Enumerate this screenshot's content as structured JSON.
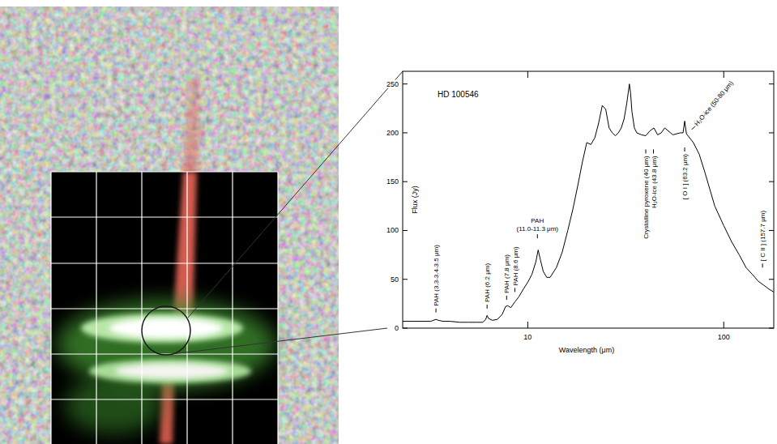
{
  "chart_data": {
    "type": "line",
    "title": "HD 100546",
    "x_label": "Wavelength (μm)",
    "y_label": "Flux (Jy)",
    "color": "#000000",
    "log": "x",
    "grid": false,
    "xlim": [
      2.3,
      180
    ],
    "ylim": [
      0,
      263
    ],
    "xticks": [
      10,
      100
    ],
    "yticks": [
      0,
      50,
      100,
      150,
      200,
      250
    ],
    "x": [
      2.3,
      2.6,
      3.0,
      3.2,
      3.3,
      3.4,
      3.5,
      3.7,
      4.0,
      4.5,
      5.0,
      5.5,
      5.9,
      6.1,
      6.2,
      6.3,
      6.6,
      7.0,
      7.4,
      7.7,
      7.9,
      8.2,
      8.6,
      9.0,
      9.5,
      10,
      10.5,
      11.0,
      11.3,
      11.6,
      12,
      12.5,
      13,
      14,
      15,
      16,
      17,
      18,
      19,
      20,
      21,
      22,
      23,
      24,
      25,
      26,
      27,
      28,
      29,
      30,
      31,
      32,
      33,
      33.5,
      34,
      35,
      36,
      38,
      40,
      42,
      44,
      46,
      48,
      50,
      55,
      60,
      62,
      63.2,
      64.5,
      70,
      75,
      80,
      90,
      100,
      110,
      120,
      130,
      140,
      150,
      160,
      170,
      180
    ],
    "values": [
      7,
      7,
      7,
      7,
      8,
      9,
      8,
      7,
      7,
      6,
      6,
      6,
      6,
      9,
      13,
      10,
      8,
      9,
      14,
      22,
      23,
      21,
      27,
      32,
      40,
      47,
      55,
      68,
      80,
      70,
      58,
      52,
      52,
      62,
      78,
      100,
      122,
      146,
      170,
      190,
      188,
      195,
      210,
      228,
      224,
      205,
      200,
      197,
      200,
      205,
      214,
      230,
      250,
      240,
      222,
      205,
      200,
      198,
      197,
      202,
      205,
      198,
      200,
      205,
      198,
      200,
      200,
      212,
      199,
      190,
      178,
      160,
      125,
      105,
      88,
      75,
      62,
      55,
      48,
      44,
      40,
      37
    ],
    "annotations": [
      {
        "text": "PAH (3.3-3.4-3.5 μm)",
        "x": 3.4,
        "y": 16
      },
      {
        "text": "PAH (6.2 μm)",
        "x": 6.2,
        "y": 20
      },
      {
        "text": "PAH (7.8 μm)",
        "x": 7.8,
        "y": 29
      },
      {
        "text": "PAH (8.6 μm)",
        "x": 8.6,
        "y": 37
      },
      {
        "lines": [
          "PAH",
          "(11.0-11.3 μm)"
        ],
        "x": 11.2,
        "y": 92
      },
      {
        "text": "Crystalline pyroxene (40 μm)",
        "x": 40,
        "y": 183
      },
      {
        "text": "H₂O-ice (43.8 μm)",
        "x": 43.8,
        "y": 183
      },
      {
        "text": "H₂O-ice (50-80 μm)",
        "x": 70,
        "y": 205
      },
      {
        "text": "[ O I ] (63.2 μm)",
        "x": 63.2,
        "y": 185
      },
      {
        "text": "[ C II ] (157.7 μm)",
        "x": 157.7,
        "y": 62
      }
    ]
  }
}
